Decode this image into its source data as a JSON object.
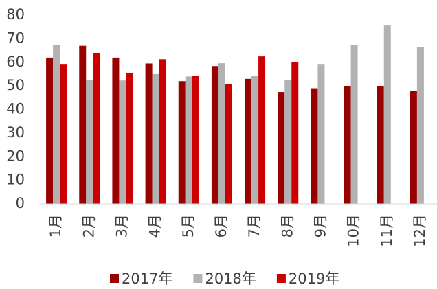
{
  "chart_data": {
    "type": "bar",
    "categories": [
      "1月",
      "2月",
      "3月",
      "4月",
      "5月",
      "6月",
      "7月",
      "8月",
      "9月",
      "10月",
      "11月",
      "12月"
    ],
    "series": [
      {
        "name": "2017年",
        "color": "#990000",
        "values": [
          62,
          67,
          62,
          59.5,
          52,
          58.4,
          53,
          47.4,
          49,
          50,
          50,
          48
        ]
      },
      {
        "name": "2018年",
        "color": "#b2b2b2",
        "values": [
          67.4,
          52.6,
          52.3,
          55,
          54,
          59.6,
          54.4,
          52.6,
          59.3,
          67.2,
          75.6,
          66.6
        ]
      },
      {
        "name": "2019年",
        "color": "#cc0000",
        "values": [
          59.3,
          64,
          55.5,
          61.3,
          54.4,
          50.9,
          62.5,
          60,
          null,
          null,
          null,
          null
        ]
      }
    ],
    "ylim": [
      0,
      80
    ],
    "yticks": [
      0,
      10,
      20,
      30,
      40,
      50,
      60,
      70,
      80
    ],
    "grid": false,
    "legend": "bottom"
  }
}
